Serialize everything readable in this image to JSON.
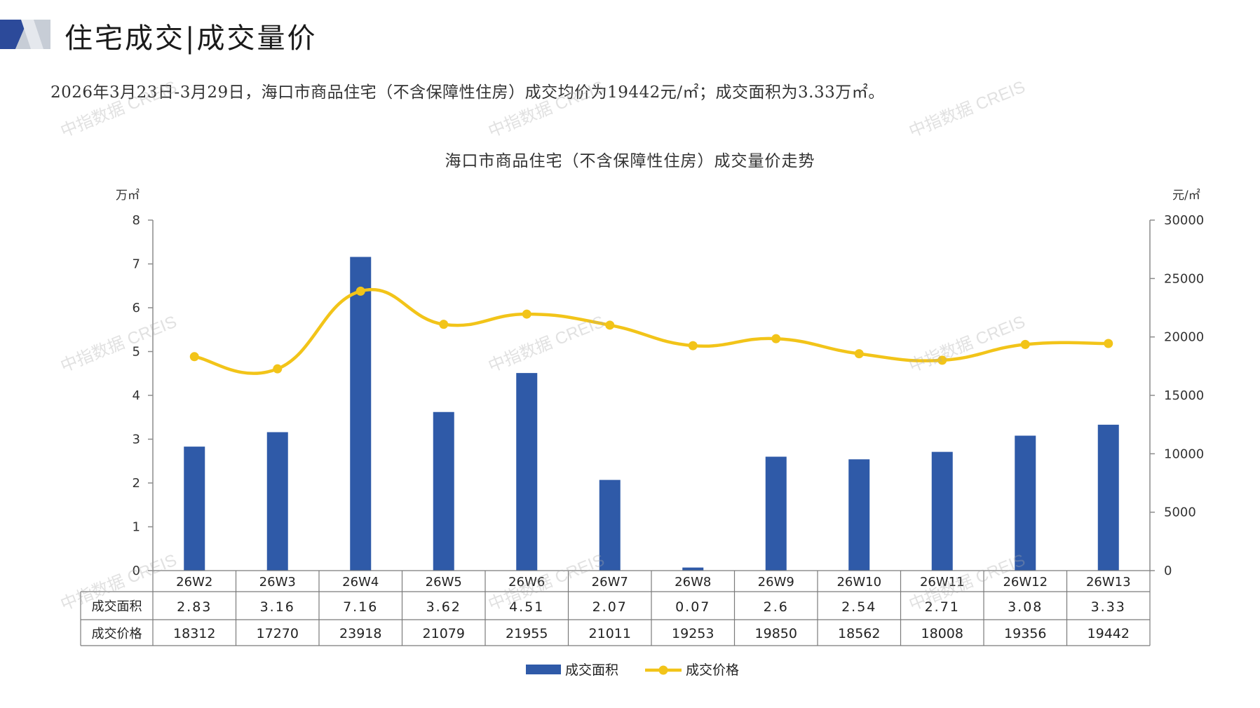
{
  "page": {
    "title": "住宅成交|成交量价",
    "summary": "2026年3月23日-3月29日，海口市商品住宅（不含保障性住房）成交均价为19442元/㎡；成交面积为3.33万㎡。",
    "watermark": "中指数据 CREIS"
  },
  "colors": {
    "bar": "#2f5aa8",
    "line": "#f2c419",
    "logo_dark": "#2c4a9a",
    "logo_light": "#c7cdd6",
    "axis": "#8c8c8c",
    "table_border": "#7a7a7a"
  },
  "chart_data": {
    "type": "bar",
    "title": "海口市商品住宅（不含保障性住房）成交量价走势",
    "categories": [
      "26W2",
      "26W3",
      "26W4",
      "26W5",
      "26W6",
      "26W7",
      "26W8",
      "26W9",
      "26W10",
      "26W11",
      "26W12",
      "26W13"
    ],
    "y_left": {
      "unit": "万㎡",
      "min": 0,
      "max": 8,
      "ticks": [
        "0",
        "1",
        "2",
        "3",
        "4",
        "5",
        "6",
        "7",
        "8"
      ]
    },
    "y_right": {
      "unit": "元/㎡",
      "min": 0,
      "max": 30000,
      "ticks": [
        "0",
        "5000",
        "10000",
        "15000",
        "20000",
        "25000",
        "30000"
      ]
    },
    "series": [
      {
        "name": "成交面积",
        "type": "bar",
        "axis": "left",
        "values": [
          2.83,
          3.16,
          7.16,
          3.62,
          4.51,
          2.07,
          0.07,
          2.6,
          2.54,
          2.71,
          3.08,
          3.33
        ],
        "labels": [
          "2.83",
          "3.16",
          "7.16",
          "3.62",
          "4.51",
          "2.07",
          "0.07",
          "2.6",
          "2.54",
          "2.71",
          "3.08",
          "3.33"
        ]
      },
      {
        "name": "成交价格",
        "type": "line",
        "axis": "right",
        "smooth": true,
        "values": [
          18312,
          17270,
          23918,
          21079,
          21955,
          21011,
          19253,
          19850,
          18562,
          18008,
          19356,
          19442
        ],
        "labels": [
          "18312",
          "17270",
          "23918",
          "21079",
          "21955",
          "21011",
          "19253",
          "19850",
          "18562",
          "18008",
          "19356",
          "19442"
        ]
      }
    ],
    "legend_position": "bottom-center",
    "grid": false
  }
}
